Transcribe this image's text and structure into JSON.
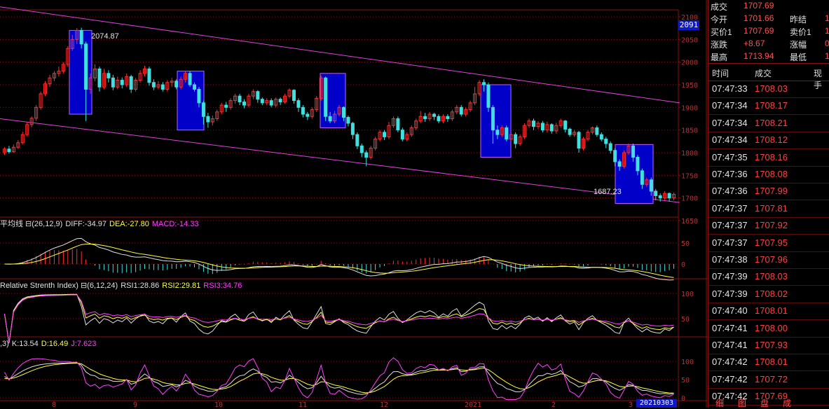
{
  "chart_data": {
    "type": "candlestick",
    "price_axis": {
      "ticks": [
        2100,
        2050,
        2000,
        1950,
        1900,
        1850,
        1800,
        1750,
        1700,
        1650
      ],
      "min": 1650,
      "max": 2100
    },
    "current_price_tag": "2091",
    "annotations": {
      "high": "2074.87",
      "low": "1687.23"
    },
    "x_labels": [
      "8",
      "9",
      "10",
      "11",
      "12",
      "2021",
      "2",
      "3"
    ],
    "x_label_pos": [
      77,
      193,
      312,
      432,
      548,
      675,
      790,
      900
    ],
    "date_tag": "20210303",
    "candles": [
      [
        1,
        1800,
        1808,
        1795,
        1812
      ],
      [
        2,
        1808,
        1802,
        1798,
        1815
      ],
      [
        3,
        1802,
        1812,
        1800,
        1818
      ],
      [
        4,
        1812,
        1822,
        1808,
        1828
      ],
      [
        5,
        1822,
        1840,
        1818,
        1846
      ],
      [
        6,
        1840,
        1862,
        1836,
        1868
      ],
      [
        7,
        1862,
        1876,
        1856,
        1880
      ],
      [
        8,
        1876,
        1900,
        1870,
        1905
      ],
      [
        9,
        1900,
        1930,
        1895,
        1935
      ],
      [
        10,
        1930,
        1952,
        1925,
        1958
      ],
      [
        11,
        1952,
        1965,
        1945,
        1972
      ],
      [
        12,
        1965,
        1975,
        1958,
        1980
      ],
      [
        13,
        1975,
        1980,
        1968,
        1990
      ],
      [
        14,
        1980,
        1995,
        1975,
        2000
      ],
      [
        15,
        1995,
        2030,
        1990,
        2035
      ],
      [
        16,
        2030,
        2050,
        2025,
        2060
      ],
      [
        17,
        2050,
        2070,
        2040,
        2075
      ],
      [
        18,
        2070,
        2040,
        2030,
        2076
      ],
      [
        19,
        2040,
        1940,
        1870,
        2045
      ],
      [
        20,
        1940,
        1965,
        1930,
        1975
      ],
      [
        21,
        1965,
        1985,
        1958,
        1995
      ],
      [
        22,
        1985,
        1945,
        1935,
        1990
      ],
      [
        23,
        1945,
        1975,
        1940,
        1985
      ],
      [
        24,
        1975,
        1965,
        1955,
        1982
      ],
      [
        25,
        1965,
        1945,
        1938,
        1972
      ],
      [
        26,
        1945,
        1960,
        1940,
        1968
      ],
      [
        27,
        1960,
        1950,
        1942,
        1966
      ],
      [
        28,
        1950,
        1968,
        1945,
        1975
      ],
      [
        29,
        1968,
        1940,
        1932,
        1972
      ],
      [
        30,
        1940,
        1960,
        1935,
        1965
      ],
      [
        31,
        1960,
        1975,
        1955,
        1982
      ],
      [
        32,
        1975,
        1985,
        1968,
        1992
      ],
      [
        33,
        1985,
        1955,
        1948,
        1990
      ],
      [
        34,
        1955,
        1945,
        1938,
        1962
      ],
      [
        35,
        1945,
        1950,
        1940,
        1958
      ],
      [
        36,
        1950,
        1940,
        1935,
        1956
      ],
      [
        37,
        1940,
        1955,
        1935,
        1960
      ],
      [
        38,
        1955,
        1958,
        1945,
        1965
      ],
      [
        39,
        1958,
        1945,
        1940,
        1962
      ],
      [
        40,
        1945,
        1962,
        1940,
        1968
      ],
      [
        41,
        1962,
        1975,
        1955,
        1980
      ],
      [
        42,
        1975,
        1950,
        1945,
        1980
      ],
      [
        43,
        1950,
        1940,
        1935,
        1955
      ],
      [
        44,
        1940,
        1910,
        1900,
        1945
      ],
      [
        45,
        1910,
        1880,
        1862,
        1915
      ],
      [
        46,
        1880,
        1868,
        1855,
        1888
      ],
      [
        47,
        1868,
        1875,
        1860,
        1882
      ],
      [
        48,
        1875,
        1890,
        1870,
        1895
      ],
      [
        49,
        1890,
        1905,
        1885,
        1910
      ],
      [
        50,
        1905,
        1900,
        1890,
        1912
      ],
      [
        51,
        1900,
        1915,
        1895,
        1920
      ],
      [
        52,
        1915,
        1925,
        1908,
        1930
      ],
      [
        53,
        1925,
        1912,
        1905,
        1930
      ],
      [
        54,
        1912,
        1905,
        1898,
        1918
      ],
      [
        55,
        1905,
        1925,
        1900,
        1930
      ],
      [
        56,
        1925,
        1935,
        1918,
        1940
      ],
      [
        57,
        1935,
        1918,
        1910,
        1938
      ],
      [
        58,
        1918,
        1910,
        1905,
        1922
      ],
      [
        59,
        1910,
        1915,
        1905,
        1920
      ],
      [
        60,
        1915,
        1905,
        1900,
        1920
      ],
      [
        61,
        1905,
        1918,
        1900,
        1922
      ],
      [
        62,
        1918,
        1912,
        1905,
        1922
      ],
      [
        63,
        1912,
        1925,
        1908,
        1930
      ],
      [
        64,
        1925,
        1938,
        1920,
        1942
      ],
      [
        65,
        1938,
        1915,
        1908,
        1940
      ],
      [
        66,
        1915,
        1900,
        1890,
        1920
      ],
      [
        67,
        1900,
        1885,
        1878,
        1905
      ],
      [
        68,
        1885,
        1880,
        1872,
        1890
      ],
      [
        69,
        1880,
        1895,
        1875,
        1900
      ],
      [
        70,
        1895,
        1920,
        1890,
        1925
      ],
      [
        71,
        1920,
        1965,
        1915,
        1970
      ],
      [
        72,
        1965,
        1880,
        1870,
        1968
      ],
      [
        73,
        1880,
        1870,
        1865,
        1890
      ],
      [
        74,
        1870,
        1885,
        1865,
        1892
      ],
      [
        75,
        1885,
        1900,
        1880,
        1905
      ],
      [
        76,
        1900,
        1878,
        1870,
        1902
      ],
      [
        77,
        1878,
        1865,
        1858,
        1882
      ],
      [
        78,
        1865,
        1840,
        1830,
        1868
      ],
      [
        79,
        1840,
        1815,
        1808,
        1845
      ],
      [
        80,
        1815,
        1800,
        1790,
        1820
      ],
      [
        81,
        1800,
        1790,
        1770,
        1805
      ],
      [
        82,
        1790,
        1810,
        1785,
        1815
      ],
      [
        83,
        1810,
        1830,
        1805,
        1835
      ],
      [
        84,
        1830,
        1845,
        1825,
        1850
      ],
      [
        85,
        1845,
        1835,
        1828,
        1850
      ],
      [
        86,
        1835,
        1860,
        1830,
        1868
      ],
      [
        87,
        1860,
        1875,
        1855,
        1880
      ],
      [
        88,
        1875,
        1850,
        1845,
        1880
      ],
      [
        89,
        1850,
        1830,
        1825,
        1855
      ],
      [
        90,
        1830,
        1840,
        1825,
        1845
      ],
      [
        91,
        1840,
        1855,
        1835,
        1860
      ],
      [
        92,
        1855,
        1870,
        1850,
        1875
      ],
      [
        93,
        1870,
        1880,
        1865,
        1892
      ],
      [
        94,
        1880,
        1875,
        1868,
        1888
      ],
      [
        95,
        1875,
        1885,
        1870,
        1890
      ],
      [
        96,
        1885,
        1880,
        1872,
        1888
      ],
      [
        97,
        1880,
        1870,
        1865,
        1885
      ],
      [
        98,
        1870,
        1880,
        1865,
        1885
      ],
      [
        99,
        1880,
        1875,
        1868,
        1885
      ],
      [
        100,
        1875,
        1890,
        1870,
        1895
      ],
      [
        101,
        1890,
        1900,
        1885,
        1905
      ],
      [
        102,
        1900,
        1885,
        1880,
        1905
      ],
      [
        103,
        1885,
        1895,
        1880,
        1900
      ],
      [
        104,
        1895,
        1910,
        1890,
        1915
      ],
      [
        105,
        1910,
        1930,
        1905,
        1945
      ],
      [
        106,
        1930,
        1955,
        1925,
        1960
      ],
      [
        107,
        1955,
        1950,
        1935,
        1962
      ],
      [
        108,
        1950,
        1900,
        1890,
        1955
      ],
      [
        109,
        1900,
        1850,
        1820,
        1905
      ],
      [
        110,
        1850,
        1840,
        1830,
        1860
      ],
      [
        111,
        1840,
        1855,
        1835,
        1860
      ],
      [
        112,
        1855,
        1830,
        1825,
        1860
      ],
      [
        113,
        1830,
        1840,
        1825,
        1845
      ],
      [
        114,
        1840,
        1820,
        1810,
        1845
      ],
      [
        115,
        1820,
        1835,
        1815,
        1840
      ],
      [
        116,
        1835,
        1860,
        1830,
        1865
      ],
      [
        117,
        1860,
        1870,
        1855,
        1875
      ],
      [
        118,
        1870,
        1858,
        1850,
        1875
      ],
      [
        119,
        1858,
        1865,
        1852,
        1870
      ],
      [
        120,
        1865,
        1850,
        1845,
        1870
      ],
      [
        121,
        1850,
        1862,
        1845,
        1868
      ],
      [
        122,
        1862,
        1848,
        1842,
        1865
      ],
      [
        123,
        1848,
        1860,
        1842,
        1866
      ],
      [
        124,
        1860,
        1870,
        1855,
        1875
      ],
      [
        125,
        1870,
        1852,
        1845,
        1872
      ],
      [
        126,
        1852,
        1840,
        1835,
        1855
      ],
      [
        127,
        1840,
        1845,
        1835,
        1850
      ],
      [
        128,
        1845,
        1810,
        1800,
        1848
      ],
      [
        129,
        1810,
        1830,
        1805,
        1835
      ],
      [
        130,
        1830,
        1845,
        1825,
        1850
      ],
      [
        131,
        1845,
        1855,
        1840,
        1858
      ],
      [
        132,
        1855,
        1840,
        1835,
        1860
      ],
      [
        133,
        1840,
        1830,
        1825,
        1845
      ],
      [
        134,
        1830,
        1820,
        1810,
        1835
      ],
      [
        135,
        1820,
        1805,
        1798,
        1825
      ],
      [
        136,
        1805,
        1780,
        1770,
        1810
      ],
      [
        137,
        1780,
        1770,
        1760,
        1785
      ],
      [
        138,
        1770,
        1800,
        1765,
        1805
      ],
      [
        139,
        1800,
        1815,
        1795,
        1820
      ],
      [
        140,
        1815,
        1790,
        1780,
        1820
      ],
      [
        141,
        1790,
        1760,
        1750,
        1795
      ],
      [
        142,
        1760,
        1730,
        1720,
        1765
      ],
      [
        143,
        1730,
        1740,
        1725,
        1745
      ],
      [
        144,
        1740,
        1715,
        1705,
        1745
      ],
      [
        145,
        1715,
        1705,
        1695,
        1720
      ],
      [
        146,
        1705,
        1700,
        1692,
        1710
      ],
      [
        147,
        1700,
        1710,
        1695,
        1715
      ],
      [
        148,
        1710,
        1700,
        1692,
        1712
      ],
      [
        149,
        1700,
        1708,
        1695,
        1712
      ]
    ],
    "channel": {
      "upper": [
        [
          0,
          2122
        ],
        [
          970,
          1910
        ]
      ],
      "lower": [
        [
          0,
          1875
        ],
        [
          970,
          1690
        ]
      ]
    },
    "boxes": [
      [
        99,
        131,
        2070,
        1885
      ],
      [
        253,
        291,
        1980,
        1850
      ],
      [
        457,
        493,
        1975,
        1855
      ],
      [
        686,
        729,
        1950,
        1790
      ],
      [
        878,
        932,
        1818,
        1688
      ]
    ],
    "indicators": [
      {
        "legend": [
          {
            "text": "平均线 ⊟(26,12,9)",
            "color": "#e0e0e0"
          },
          {
            "text": "DIFF:-34.97",
            "color": "#e0e0e0"
          },
          {
            "text": "DEA:-27.80",
            "color": "#ffff40"
          },
          {
            "text": "MACD:-14.33",
            "color": "#ff40ff"
          }
        ],
        "ticks": [
          "50",
          "0"
        ]
      },
      {
        "legend": [
          {
            "text": "Relative Strenth Index) ⊟(6,12,24)",
            "color": "#e0e0e0"
          },
          {
            "text": "RSI1:28.86",
            "color": "#e0e0e0"
          },
          {
            "text": "RSI2:29.81",
            "color": "#ffff40"
          },
          {
            "text": "RSI3:34.76",
            "color": "#ff40ff"
          }
        ],
        "ticks": [
          "100",
          "50"
        ]
      },
      {
        "legend": [
          {
            "text": ",3)",
            "color": "#e0e0e0"
          },
          {
            "text": "K:13.54",
            "color": "#e0e0e0"
          },
          {
            "text": "D:16.49",
            "color": "#ffff40"
          },
          {
            "text": "J:7.623",
            "color": "#ff40ff"
          }
        ],
        "ticks": [
          "100",
          "50",
          "0"
        ]
      }
    ],
    "colors": {
      "up": "#ff3030",
      "down": "#40e0e0",
      "channel": "#e040e0",
      "box_fill": "#0000c8",
      "box_stroke": "#c060ff",
      "grid": "#8a1010"
    }
  },
  "quote_panel": {
    "rows": [
      {
        "k1": "成交",
        "v1": "1707.69",
        "k2": "",
        "v2": ""
      },
      {
        "k1": "今开",
        "v1": "1701.66",
        "k2": "昨结",
        "v2": "1"
      },
      {
        "k1": "买价1",
        "v1": "1707.69",
        "k2": "卖价1",
        "v2": "1"
      },
      {
        "k1": "涨跌",
        "v1": "+8.67",
        "k2": "涨幅",
        "v2": "0"
      },
      {
        "k1": "最高",
        "v1": "1713.94",
        "k2": "最低",
        "v2": "1"
      }
    ],
    "tick_header": {
      "time": "时间",
      "price": "成交",
      "vol": "现手"
    },
    "ticks": [
      {
        "time": "07:47:33",
        "price": "1708.03"
      },
      {
        "time": "07:47:34",
        "price": "1708.17"
      },
      {
        "time": "07:47:34",
        "price": "1708.21"
      },
      {
        "time": "07:47:34",
        "price": "1708.12"
      },
      {
        "time": "07:47:35",
        "price": "1708.16"
      },
      {
        "time": "07:47:36",
        "price": "1708.08"
      },
      {
        "time": "07:47:36",
        "price": "1707.99"
      },
      {
        "time": "07:47:37",
        "price": "1707.81"
      },
      {
        "time": "07:47:37",
        "price": "1707.92"
      },
      {
        "time": "07:47:37",
        "price": "1707.95"
      },
      {
        "time": "07:47:38",
        "price": "1707.96"
      },
      {
        "time": "07:47:39",
        "price": "1708.03"
      },
      {
        "time": "07:47:39",
        "price": "1708.02"
      },
      {
        "time": "07:47:40",
        "price": "1708.01"
      },
      {
        "time": "07:47:41",
        "price": "1708.00"
      },
      {
        "time": "07:47:41",
        "price": "1707.93"
      },
      {
        "time": "07:47:42",
        "price": "1708.01"
      },
      {
        "time": "07:47:42",
        "price": "1707.72"
      },
      {
        "time": "07:47:42",
        "price": "1707.69"
      }
    ],
    "tabs": [
      "细",
      "图",
      "盘",
      "成"
    ]
  }
}
